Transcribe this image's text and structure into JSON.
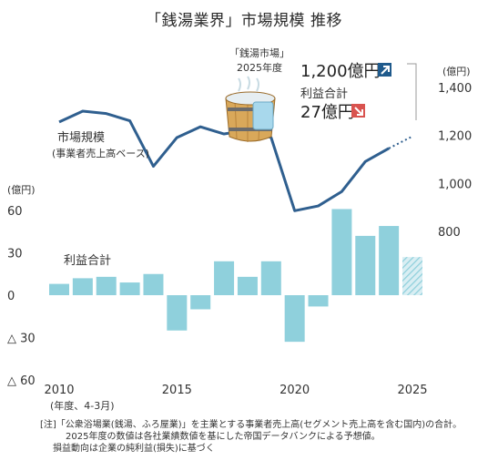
{
  "title": "「銭湯業界」市場規模 推移",
  "notes": [
    "[注]「公衆浴場業(銭湯、ふろ屋業)」を主業とする事業者売上高(セグメント売上高を含む国内)の合計。",
    "2025年度の数値は各社業績数値を基にした帝国データバンクによる予想値。",
    "損益動向は企業の純利益(損失)に基づく"
  ],
  "callout": {
    "line1": "「銭湯市場」",
    "line2": "2025年度",
    "market_value": "1,200億円",
    "profit_label": "利益合計",
    "profit_value": "27億円",
    "up_color": "#1f5a8c",
    "down_color": "#d9534f"
  },
  "chart_data": {
    "type": "bar+line",
    "x": [
      2010,
      2011,
      2012,
      2013,
      2014,
      2015,
      2016,
      2017,
      2018,
      2019,
      2020,
      2021,
      2022,
      2023,
      2024,
      2025
    ],
    "x_tick_labels": [
      "2010",
      "2015",
      "2020",
      "2025"
    ],
    "x_unit_label": "(年度、4-3月)",
    "line_series": {
      "name": "市場規模",
      "label_lines": [
        "市場規模",
        "(事業者売上高ベース)"
      ],
      "axis_unit": "(億円)",
      "y_ticks": [
        "1,400",
        "1,200",
        "1,000",
        "800"
      ],
      "ylim": [
        800,
        1400
      ],
      "values": [
        1260,
        1305,
        1295,
        1265,
        1075,
        1195,
        1240,
        1210,
        1225,
        1195,
        890,
        910,
        970,
        1095,
        1150,
        1200
      ],
      "estimate_from_index": 14,
      "color": "#2f5f8f"
    },
    "bar_series": {
      "name": "利益合計",
      "axis_unit": "(億円)",
      "y_ticks": [
        "60",
        "30",
        "0",
        "△ 30",
        "△ 60"
      ],
      "ylim": [
        -60,
        60
      ],
      "values": [
        8,
        12,
        13,
        9,
        15,
        -25,
        -10,
        24,
        13,
        24,
        -33,
        -8,
        61,
        42,
        49,
        27
      ],
      "estimate_index": 15,
      "color": "#8fd0dc"
    }
  }
}
